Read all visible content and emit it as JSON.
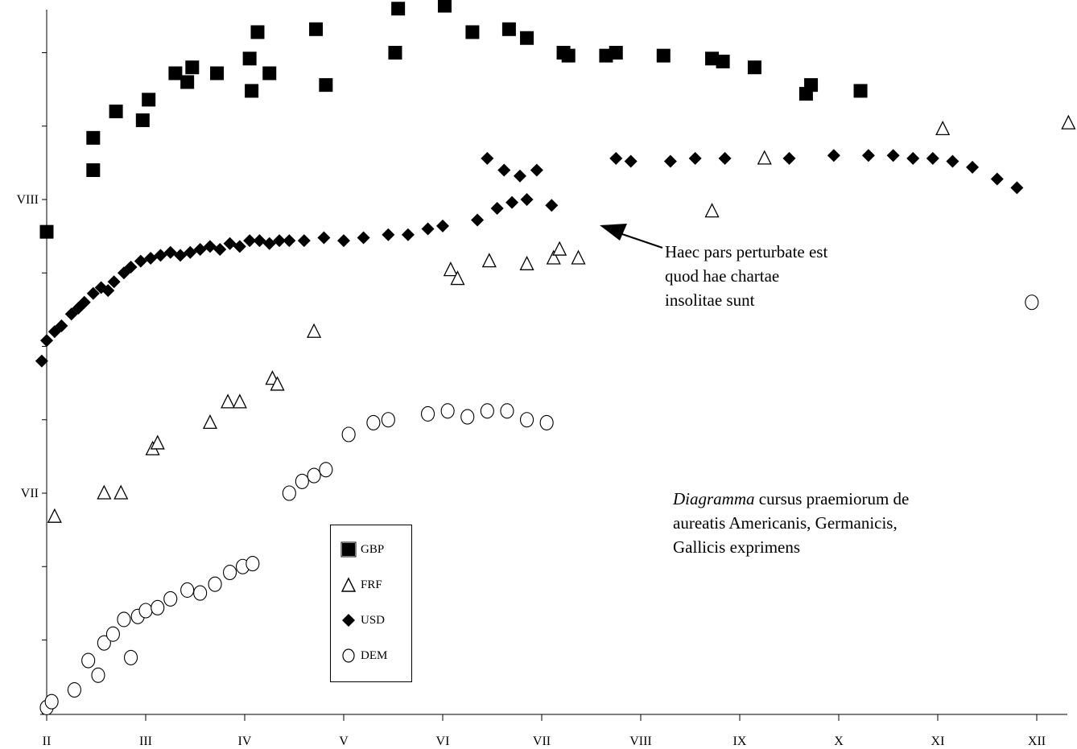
{
  "chart_data": {
    "type": "scatter",
    "x_tick_labels": [
      "II",
      "III",
      "IV",
      "V",
      "VI",
      "VII",
      "VIII",
      "IX",
      "X",
      "XI",
      "XII"
    ],
    "x": [
      2,
      3,
      4,
      5,
      6,
      7,
      8,
      9,
      10,
      11,
      12
    ],
    "y_tick_labels": [
      {
        "value": 8,
        "label": "VIII"
      },
      {
        "value": 7,
        "label": "VII"
      }
    ],
    "ylim": [
      6.27,
      8.67
    ],
    "xlim": [
      1.93,
      12.33
    ],
    "grid": false,
    "legend_position": "bottom-center",
    "series": [
      {
        "name": "GBP",
        "marker": "square-filled",
        "points": [
          [
            2.0,
            7.89
          ],
          [
            2.47,
            8.21
          ],
          [
            2.47,
            8.1
          ],
          [
            2.7,
            8.3
          ],
          [
            2.97,
            8.27
          ],
          [
            3.03,
            8.34
          ],
          [
            3.3,
            8.43
          ],
          [
            3.42,
            8.4
          ],
          [
            3.47,
            8.45
          ],
          [
            3.72,
            8.43
          ],
          [
            4.05,
            8.48
          ],
          [
            4.07,
            8.37
          ],
          [
            4.13,
            8.57
          ],
          [
            4.25,
            8.43
          ],
          [
            4.72,
            8.58
          ],
          [
            4.82,
            8.39
          ],
          [
            5.52,
            8.5
          ],
          [
            5.55,
            8.65
          ],
          [
            6.02,
            8.66
          ],
          [
            6.3,
            8.57
          ],
          [
            6.67,
            8.58
          ],
          [
            6.85,
            8.55
          ],
          [
            7.22,
            8.5
          ],
          [
            7.27,
            8.49
          ],
          [
            7.65,
            8.49
          ],
          [
            7.75,
            8.5
          ],
          [
            8.23,
            8.49
          ],
          [
            8.72,
            8.48
          ],
          [
            8.83,
            8.47
          ],
          [
            9.15,
            8.45
          ],
          [
            9.67,
            8.36
          ],
          [
            9.72,
            8.39
          ],
          [
            10.22,
            8.37
          ]
        ]
      },
      {
        "name": "FRF",
        "marker": "triangle-open",
        "points": [
          [
            2.08,
            6.92
          ],
          [
            2.58,
            7.0
          ],
          [
            2.75,
            7.0
          ],
          [
            3.07,
            7.15
          ],
          [
            3.12,
            7.17
          ],
          [
            3.65,
            7.24
          ],
          [
            3.83,
            7.31
          ],
          [
            3.95,
            7.31
          ],
          [
            4.28,
            7.39
          ],
          [
            4.33,
            7.37
          ],
          [
            4.7,
            7.55
          ],
          [
            6.08,
            7.76
          ],
          [
            6.15,
            7.73
          ],
          [
            6.47,
            7.79
          ],
          [
            6.85,
            7.78
          ],
          [
            7.12,
            7.8
          ],
          [
            7.18,
            7.83
          ],
          [
            7.37,
            7.8
          ],
          [
            8.72,
            7.96
          ],
          [
            9.25,
            8.14
          ],
          [
            11.05,
            8.24
          ],
          [
            12.32,
            8.26
          ]
        ]
      },
      {
        "name": "USD",
        "marker": "diamond-filled",
        "points": [
          [
            1.95,
            7.45
          ],
          [
            2.0,
            7.52
          ],
          [
            2.08,
            7.55
          ],
          [
            2.15,
            7.57
          ],
          [
            2.25,
            7.61
          ],
          [
            2.32,
            7.63
          ],
          [
            2.38,
            7.65
          ],
          [
            2.47,
            7.68
          ],
          [
            2.55,
            7.7
          ],
          [
            2.62,
            7.69
          ],
          [
            2.68,
            7.72
          ],
          [
            2.78,
            7.75
          ],
          [
            2.85,
            7.77
          ],
          [
            2.95,
            7.79
          ],
          [
            3.05,
            7.8
          ],
          [
            3.15,
            7.81
          ],
          [
            3.25,
            7.82
          ],
          [
            3.35,
            7.81
          ],
          [
            3.45,
            7.82
          ],
          [
            3.55,
            7.83
          ],
          [
            3.65,
            7.84
          ],
          [
            3.75,
            7.83
          ],
          [
            3.85,
            7.85
          ],
          [
            3.95,
            7.84
          ],
          [
            4.05,
            7.86
          ],
          [
            4.15,
            7.86
          ],
          [
            4.25,
            7.85
          ],
          [
            4.35,
            7.86
          ],
          [
            4.45,
            7.86
          ],
          [
            4.6,
            7.86
          ],
          [
            4.8,
            7.87
          ],
          [
            5.0,
            7.86
          ],
          [
            5.2,
            7.87
          ],
          [
            5.45,
            7.88
          ],
          [
            5.65,
            7.88
          ],
          [
            5.85,
            7.9
          ],
          [
            6.0,
            7.91
          ],
          [
            6.35,
            7.93
          ],
          [
            6.55,
            7.97
          ],
          [
            6.7,
            7.99
          ],
          [
            6.85,
            8.0
          ],
          [
            7.1,
            7.98
          ],
          [
            6.45,
            8.14
          ],
          [
            6.62,
            8.1
          ],
          [
            6.78,
            8.08
          ],
          [
            6.95,
            8.1
          ],
          [
            7.75,
            8.14
          ],
          [
            7.9,
            8.13
          ],
          [
            8.3,
            8.13
          ],
          [
            8.55,
            8.14
          ],
          [
            8.85,
            8.14
          ],
          [
            9.5,
            8.14
          ],
          [
            9.95,
            8.15
          ],
          [
            10.3,
            8.15
          ],
          [
            10.55,
            8.15
          ],
          [
            10.75,
            8.14
          ],
          [
            10.95,
            8.14
          ],
          [
            11.15,
            8.13
          ],
          [
            11.35,
            8.11
          ],
          [
            11.6,
            8.07
          ],
          [
            11.8,
            8.04
          ]
        ]
      },
      {
        "name": "DEM",
        "marker": "circle-open",
        "points": [
          [
            2.0,
            6.27
          ],
          [
            2.05,
            6.29
          ],
          [
            2.28,
            6.33
          ],
          [
            2.42,
            6.43
          ],
          [
            2.52,
            6.38
          ],
          [
            2.58,
            6.49
          ],
          [
            2.67,
            6.52
          ],
          [
            2.78,
            6.57
          ],
          [
            2.85,
            6.44
          ],
          [
            2.92,
            6.58
          ],
          [
            3.0,
            6.6
          ],
          [
            3.12,
            6.61
          ],
          [
            3.25,
            6.64
          ],
          [
            3.42,
            6.67
          ],
          [
            3.55,
            6.66
          ],
          [
            3.7,
            6.69
          ],
          [
            3.85,
            6.73
          ],
          [
            3.98,
            6.75
          ],
          [
            4.08,
            6.76
          ],
          [
            4.45,
            7.0
          ],
          [
            4.58,
            7.04
          ],
          [
            4.7,
            7.06
          ],
          [
            4.82,
            7.08
          ],
          [
            5.05,
            7.2
          ],
          [
            5.3,
            7.24
          ],
          [
            5.45,
            7.25
          ],
          [
            5.85,
            7.27
          ],
          [
            6.05,
            7.28
          ],
          [
            6.25,
            7.26
          ],
          [
            6.45,
            7.28
          ],
          [
            6.65,
            7.28
          ],
          [
            6.85,
            7.25
          ],
          [
            7.05,
            7.24
          ],
          [
            11.95,
            7.65
          ]
        ]
      }
    ]
  },
  "legend": {
    "items": [
      {
        "label": "GBP",
        "marker": "square-filled"
      },
      {
        "label": "FRF",
        "marker": "triangle-open"
      },
      {
        "label": "USD",
        "marker": "diamond-filled"
      },
      {
        "label": "DEM",
        "marker": "circle-open"
      }
    ]
  },
  "annotations": {
    "arrow_note": [
      "Haec pars perturbate est",
      "quod hae chartae",
      "insolitae sunt"
    ],
    "caption_italic": "Diagramma",
    "caption_rest_line1": " cursus praemiorum de",
    "caption_line2": "aureatis Americanis, Germanicis,",
    "caption_line3": "Gallicis exprimens"
  }
}
